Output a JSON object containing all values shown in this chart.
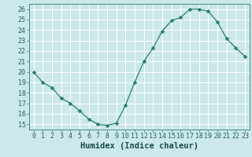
{
  "x": [
    0,
    1,
    2,
    3,
    4,
    5,
    6,
    7,
    8,
    9,
    10,
    11,
    12,
    13,
    14,
    15,
    16,
    17,
    18,
    19,
    20,
    21,
    22,
    23
  ],
  "y": [
    20.0,
    19.0,
    18.5,
    17.5,
    17.0,
    16.3,
    15.5,
    15.0,
    14.9,
    15.1,
    16.8,
    19.0,
    21.0,
    22.3,
    23.9,
    24.9,
    25.2,
    26.0,
    26.0,
    25.8,
    24.8,
    23.2,
    22.3,
    21.5
  ],
  "line_color": "#2e7d6e",
  "marker": "D",
  "marker_size": 2.5,
  "bg_color": "#cce8e8",
  "grid_color": "#ffffff",
  "xlabel": "Humidex (Indice chaleur)",
  "xlim": [
    -0.5,
    23.5
  ],
  "ylim": [
    14.5,
    26.5
  ],
  "yticks": [
    15,
    16,
    17,
    18,
    19,
    20,
    21,
    22,
    23,
    24,
    25,
    26
  ],
  "xticks": [
    0,
    1,
    2,
    3,
    4,
    5,
    6,
    7,
    8,
    9,
    10,
    11,
    12,
    13,
    14,
    15,
    16,
    17,
    18,
    19,
    20,
    21,
    22,
    23
  ],
  "tick_fontsize": 6.0,
  "xlabel_fontsize": 7.5,
  "font_family": "monospace"
}
